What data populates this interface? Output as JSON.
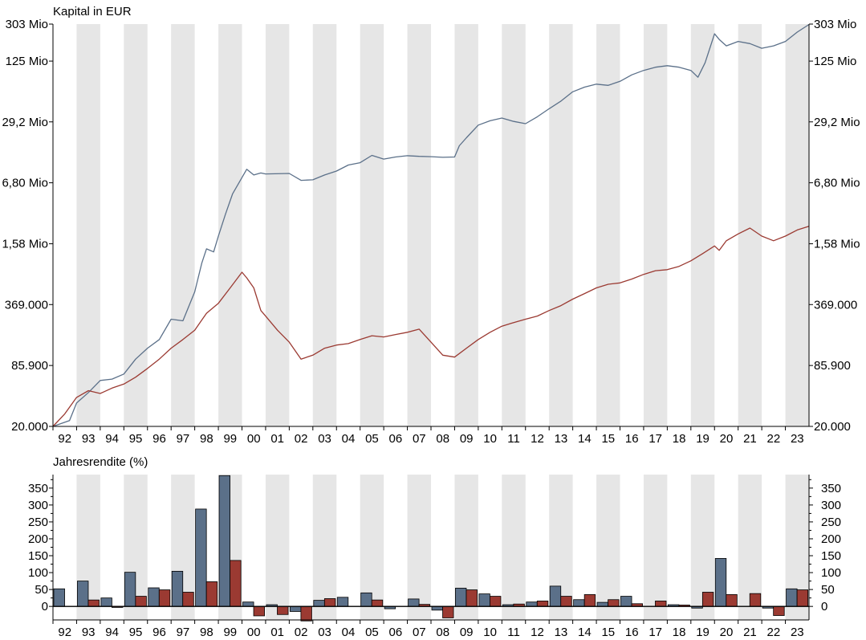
{
  "colors": {
    "band": "#e6e6e6",
    "series_a": "#5b7089",
    "series_b": "#9b3a32",
    "axis": "#000000"
  },
  "chart_data": [
    {
      "type": "line",
      "title": "Kapital in EUR",
      "scale": "log",
      "ylim": [
        20000,
        303000000
      ],
      "y_ticks": [
        20000,
        85900,
        369000,
        1580000,
        6800000,
        29200000,
        125000000,
        303000000
      ],
      "y_tick_labels": [
        "20.000",
        "85.900",
        "369.000",
        "1,58 Mio",
        "6,80 Mio",
        "29,2 Mio",
        "125 Mio",
        "303 Mio"
      ],
      "x_tick_labels": [
        "92",
        "93",
        "94",
        "95",
        "96",
        "97",
        "98",
        "99",
        "00",
        "01",
        "02",
        "03",
        "04",
        "05",
        "06",
        "07",
        "08",
        "09",
        "10",
        "11",
        "12",
        "13",
        "14",
        "15",
        "16",
        "17",
        "18",
        "19",
        "20",
        "21",
        "22",
        "23"
      ],
      "series": [
        {
          "color": "#5b7089",
          "x": [
            1992.0,
            1992.7,
            1993.0,
            1993.5,
            1994.0,
            1994.5,
            1995.0,
            1995.5,
            1996.0,
            1996.5,
            1997.0,
            1997.5,
            1998.0,
            1998.3,
            1998.5,
            1998.8,
            1999.0,
            1999.3,
            1999.6,
            2000.0,
            2000.2,
            2000.5,
            2000.8,
            2001.0,
            2002.0,
            2002.5,
            2003.0,
            2003.5,
            2004.0,
            2004.5,
            2005.0,
            2005.5,
            2006.0,
            2006.5,
            2007.0,
            2007.5,
            2008.0,
            2008.5,
            2009.0,
            2009.2,
            2009.5,
            2010.0,
            2010.5,
            2011.0,
            2011.5,
            2012.0,
            2012.5,
            2013.0,
            2013.5,
            2014.0,
            2014.5,
            2015.0,
            2015.5,
            2016.0,
            2016.5,
            2017.0,
            2017.5,
            2018.0,
            2018.5,
            2019.0,
            2019.3,
            2019.6,
            2020.0,
            2020.2,
            2020.5,
            2021.0,
            2021.5,
            2022.0,
            2022.5,
            2023.0,
            2023.5,
            2024.0
          ],
          "y": [
            20000,
            23000,
            35000,
            45000,
            60000,
            62000,
            70000,
            100000,
            130000,
            160000,
            260000,
            250000,
            500000,
            1000000,
            1400000,
            1300000,
            1900000,
            3200000,
            5200000,
            7700000,
            9400000,
            8200000,
            8600000,
            8400000,
            8500000,
            7200000,
            7300000,
            8200000,
            9000000,
            10400000,
            11000000,
            13100000,
            12000000,
            12600000,
            13000000,
            12800000,
            12700000,
            12500000,
            12600000,
            16500000,
            20000000,
            27000000,
            30000000,
            32000000,
            29500000,
            28000000,
            33000000,
            40000000,
            48000000,
            60000000,
            67000000,
            72000000,
            70000000,
            77000000,
            90000000,
            100000000,
            108000000,
            112000000,
            108000000,
            100000000,
            85000000,
            120000000,
            240000000,
            210000000,
            180000000,
            200000000,
            190000000,
            170000000,
            180000000,
            200000000,
            250000000,
            300000000
          ]
        },
        {
          "color": "#9b3a32",
          "x": [
            1992.0,
            1992.5,
            1993.0,
            1993.5,
            1994.0,
            1994.5,
            1995.0,
            1995.5,
            1996.0,
            1996.5,
            1997.0,
            1997.5,
            1998.0,
            1998.5,
            1999.0,
            1999.5,
            2000.0,
            2000.2,
            2000.5,
            2000.8,
            2001.0,
            2001.5,
            2002.0,
            2002.5,
            2003.0,
            2003.5,
            2004.0,
            2004.5,
            2005.0,
            2005.5,
            2006.0,
            2006.5,
            2007.0,
            2007.5,
            2008.0,
            2008.5,
            2009.0,
            2009.5,
            2010.0,
            2010.5,
            2011.0,
            2011.5,
            2012.0,
            2012.5,
            2013.0,
            2013.5,
            2014.0,
            2014.5,
            2015.0,
            2015.5,
            2016.0,
            2016.5,
            2017.0,
            2017.5,
            2018.0,
            2018.5,
            2019.0,
            2019.5,
            2020.0,
            2020.2,
            2020.5,
            2021.0,
            2021.5,
            2022.0,
            2022.5,
            2023.0,
            2023.5,
            2024.0
          ],
          "y": [
            20000,
            27000,
            40000,
            47000,
            44000,
            50000,
            55000,
            65000,
            80000,
            100000,
            130000,
            160000,
            200000,
            300000,
            380000,
            550000,
            800000,
            700000,
            550000,
            320000,
            280000,
            200000,
            150000,
            100000,
            110000,
            130000,
            140000,
            145000,
            160000,
            175000,
            170000,
            180000,
            190000,
            205000,
            150000,
            110000,
            105000,
            130000,
            160000,
            190000,
            220000,
            240000,
            260000,
            280000,
            320000,
            360000,
            420000,
            480000,
            550000,
            600000,
            620000,
            680000,
            760000,
            830000,
            850000,
            920000,
            1050000,
            1250000,
            1500000,
            1350000,
            1700000,
            2000000,
            2300000,
            1900000,
            1700000,
            1900000,
            2200000,
            2400000
          ]
        }
      ]
    },
    {
      "type": "bar",
      "title": "Jahresrendite (%)",
      "ylim": [
        -40,
        390
      ],
      "y_ticks": [
        0,
        50,
        100,
        150,
        200,
        250,
        300,
        350
      ],
      "y_tick_labels": [
        "0",
        "50",
        "100",
        "150",
        "200",
        "250",
        "300",
        "350"
      ],
      "categories": [
        "92",
        "93",
        "94",
        "95",
        "96",
        "97",
        "98",
        "99",
        "00",
        "01",
        "02",
        "03",
        "04",
        "05",
        "06",
        "07",
        "08",
        "09",
        "10",
        "11",
        "12",
        "13",
        "14",
        "15",
        "16",
        "17",
        "18",
        "19",
        "20",
        "21",
        "22",
        "23"
      ],
      "series": [
        {
          "color": "#5b7089",
          "values": [
            52,
            75,
            25,
            101,
            55,
            104,
            288,
            387,
            13,
            5,
            -15,
            18,
            27,
            40,
            -7,
            22,
            -11,
            54,
            37,
            5,
            13,
            60,
            20,
            12,
            30,
            0,
            5,
            -5,
            142,
            0,
            -5,
            52
          ]
        },
        {
          "color": "#9b3a32",
          "values": [
            0,
            19,
            -3,
            30,
            49,
            42,
            73,
            136,
            -28,
            -24,
            -43,
            23,
            0,
            19,
            0,
            6,
            -34,
            49,
            30,
            7,
            16,
            30,
            35,
            20,
            8,
            16,
            4,
            42,
            35,
            38,
            -27,
            49
          ]
        }
      ]
    }
  ]
}
